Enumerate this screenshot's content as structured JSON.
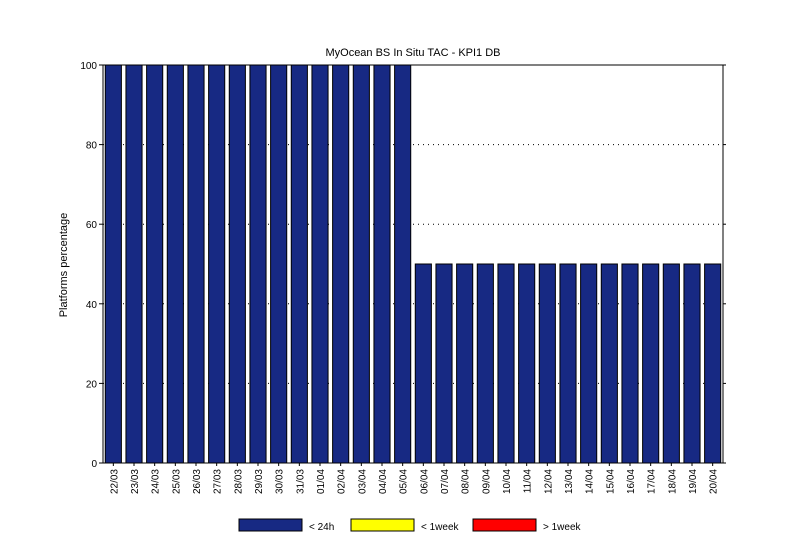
{
  "chart_data": {
    "type": "bar",
    "title": "MyOcean  BS In Situ TAC - KPI1  DB",
    "ylabel": "Platforms percentage",
    "xlabel": "",
    "ylim": [
      0,
      100
    ],
    "yticks": [
      0,
      20,
      40,
      60,
      80,
      100
    ],
    "grid": "horizontal-dotted",
    "legend_position": "bottom",
    "categories": [
      "22/03",
      "23/03",
      "24/03",
      "25/03",
      "26/03",
      "27/03",
      "28/03",
      "29/03",
      "30/03",
      "31/03",
      "01/04",
      "02/04",
      "03/04",
      "04/04",
      "05/04",
      "06/04",
      "07/04",
      "08/04",
      "09/04",
      "10/04",
      "11/04",
      "12/04",
      "13/04",
      "14/04",
      "15/04",
      "16/04",
      "17/04",
      "18/04",
      "19/04",
      "20/04"
    ],
    "series": [
      {
        "name": "< 24h",
        "color": "#172983",
        "values": [
          100,
          100,
          100,
          100,
          100,
          100,
          100,
          100,
          100,
          100,
          100,
          100,
          100,
          100,
          100,
          50,
          50,
          50,
          50,
          50,
          50,
          50,
          50,
          50,
          50,
          50,
          50,
          50,
          50,
          50
        ]
      },
      {
        "name": "< 1week",
        "color": "#ffff00",
        "values": [
          0,
          0,
          0,
          0,
          0,
          0,
          0,
          0,
          0,
          0,
          0,
          0,
          0,
          0,
          0,
          0,
          0,
          0,
          0,
          0,
          0,
          0,
          0,
          0,
          0,
          0,
          0,
          0,
          0,
          0
        ]
      },
      {
        "name": "> 1week",
        "color": "#ff0000",
        "values": [
          0,
          0,
          0,
          0,
          0,
          0,
          0,
          0,
          0,
          0,
          0,
          0,
          0,
          0,
          0,
          0,
          0,
          0,
          0,
          0,
          0,
          0,
          0,
          0,
          0,
          0,
          0,
          0,
          0,
          0
        ]
      }
    ]
  }
}
